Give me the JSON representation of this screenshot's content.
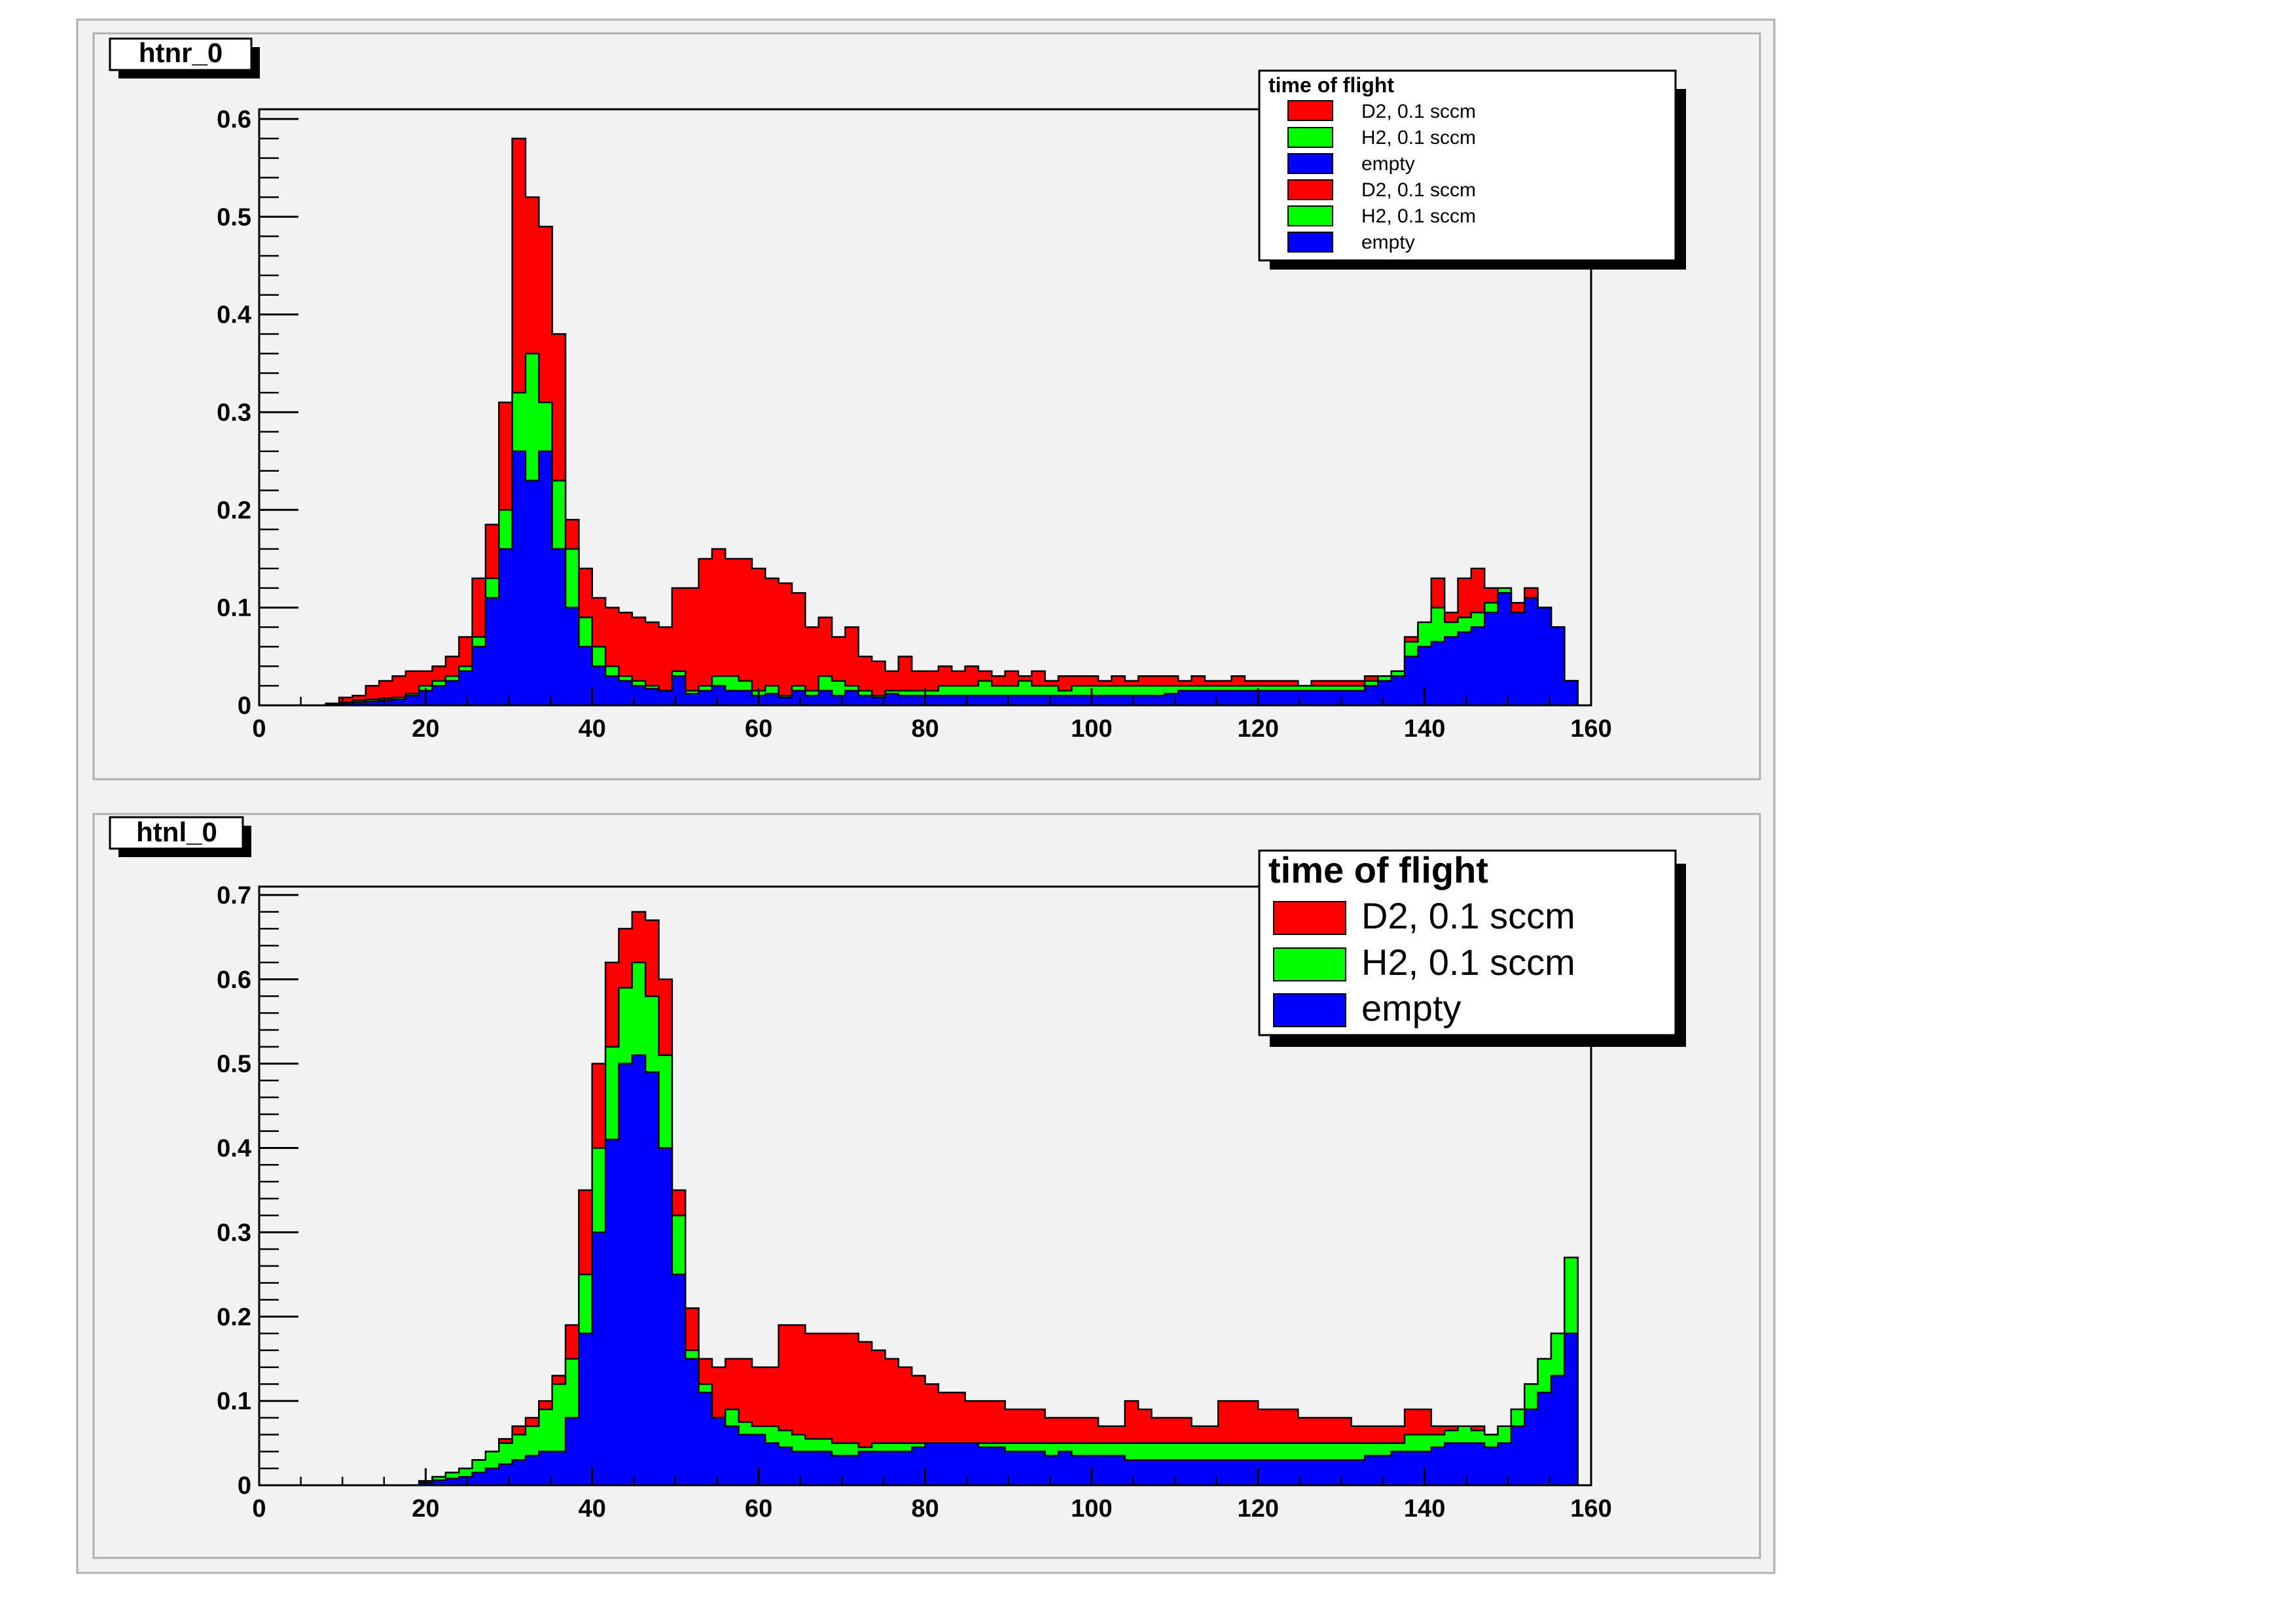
{
  "colors": {
    "background": "#ffffff",
    "pad": "#f2f2f2",
    "frame": "#000000",
    "d2": "#ff0000",
    "h2": "#00ff00",
    "empty": "#0000ff"
  },
  "chart_data": [
    {
      "type": "area",
      "subtype": "stacked-step-histogram",
      "title": "htnr_0",
      "xlim": [
        0,
        160
      ],
      "ylim": [
        0,
        0.61
      ],
      "xticks": [
        "0",
        "20",
        "40",
        "60",
        "80",
        "100",
        "120",
        "140",
        "160"
      ],
      "yticks": [
        "0",
        "0.1",
        "0.2",
        "0.3",
        "0.4",
        "0.5",
        "0.6"
      ],
      "legend": {
        "title": "time of flight",
        "placement": "top-right",
        "entries": [
          "D2, 0.1 sccm",
          "H2, 0.1 sccm",
          "empty",
          "D2, 0.1 sccm",
          "H2, 0.1 sccm",
          "empty"
        ]
      },
      "bin_width": 1.6,
      "series": [
        {
          "name": "empty",
          "color_key": "empty",
          "values": [
            0,
            0,
            0,
            0,
            0,
            0.001,
            0.002,
            0.003,
            0.004,
            0.005,
            0.006,
            0.01,
            0.015,
            0.02,
            0.025,
            0.035,
            0.06,
            0.11,
            0.16,
            0.26,
            0.23,
            0.26,
            0.16,
            0.1,
            0.06,
            0.04,
            0.03,
            0.025,
            0.02,
            0.017,
            0.015,
            0.03,
            0.012,
            0.015,
            0.02,
            0.015,
            0.015,
            0.01,
            0.012,
            0.008,
            0.015,
            0.01,
            0.015,
            0.01,
            0.015,
            0.01,
            0.008,
            0.012,
            0.01,
            0.01,
            0.01,
            0.01,
            0.01,
            0.01,
            0.01,
            0.01,
            0.01,
            0.01,
            0.01,
            0.01,
            0.01,
            0.01,
            0.01,
            0.01,
            0.01,
            0.01,
            0.01,
            0.01,
            0.012,
            0.015,
            0.015,
            0.015,
            0.015,
            0.015,
            0.015,
            0.015,
            0.015,
            0.015,
            0.015,
            0.015,
            0.015,
            0.015,
            0.015,
            0.02,
            0.025,
            0.03,
            0.05,
            0.06,
            0.065,
            0.07,
            0.075,
            0.08,
            0.095,
            0.115,
            0.095,
            0.11,
            0.1,
            0.08,
            0.025
          ]
        },
        {
          "name": "H2, 0.1 sccm",
          "color_key": "h2",
          "values": [
            0,
            0,
            0,
            0,
            0,
            0.001,
            0.003,
            0.005,
            0.006,
            0.007,
            0.008,
            0.012,
            0.02,
            0.025,
            0.03,
            0.04,
            0.07,
            0.13,
            0.2,
            0.32,
            0.36,
            0.31,
            0.23,
            0.16,
            0.09,
            0.06,
            0.04,
            0.03,
            0.025,
            0.02,
            0.015,
            0.035,
            0.015,
            0.02,
            0.03,
            0.03,
            0.025,
            0.015,
            0.02,
            0.01,
            0.02,
            0.015,
            0.03,
            0.025,
            0.02,
            0.015,
            0.01,
            0.015,
            0.015,
            0.015,
            0.015,
            0.02,
            0.02,
            0.02,
            0.025,
            0.02,
            0.02,
            0.025,
            0.02,
            0.02,
            0.015,
            0.02,
            0.02,
            0.02,
            0.02,
            0.02,
            0.02,
            0.02,
            0.02,
            0.02,
            0.02,
            0.02,
            0.02,
            0.02,
            0.02,
            0.02,
            0.02,
            0.02,
            0.02,
            0.02,
            0.02,
            0.02,
            0.02,
            0.025,
            0.03,
            0.035,
            0.065,
            0.085,
            0.1,
            0.085,
            0.09,
            0.095,
            0.105,
            0.12,
            0.095,
            0.11,
            0.1,
            0.08,
            0.025
          ]
        },
        {
          "name": "D2, 0.1 sccm",
          "color_key": "d2",
          "values": [
            0,
            0,
            0,
            0,
            0,
            0.002,
            0.008,
            0.01,
            0.02,
            0.025,
            0.03,
            0.035,
            0.035,
            0.04,
            0.05,
            0.07,
            0.13,
            0.185,
            0.31,
            0.58,
            0.52,
            0.49,
            0.38,
            0.19,
            0.14,
            0.11,
            0.1,
            0.095,
            0.09,
            0.085,
            0.08,
            0.12,
            0.12,
            0.15,
            0.16,
            0.15,
            0.15,
            0.14,
            0.13,
            0.125,
            0.115,
            0.08,
            0.09,
            0.07,
            0.08,
            0.05,
            0.045,
            0.035,
            0.05,
            0.035,
            0.035,
            0.04,
            0.035,
            0.04,
            0.035,
            0.03,
            0.035,
            0.03,
            0.035,
            0.025,
            0.03,
            0.03,
            0.03,
            0.025,
            0.03,
            0.025,
            0.03,
            0.03,
            0.03,
            0.025,
            0.03,
            0.025,
            0.025,
            0.03,
            0.025,
            0.025,
            0.025,
            0.025,
            0.02,
            0.025,
            0.025,
            0.025,
            0.025,
            0.03,
            0.03,
            0.035,
            0.07,
            0.08,
            0.13,
            0.095,
            0.13,
            0.14,
            0.12,
            0.12,
            0.105,
            0.12,
            0.1,
            0.08,
            0.025
          ]
        }
      ]
    },
    {
      "type": "area",
      "subtype": "stacked-step-histogram",
      "title": "htnl_0",
      "xlim": [
        0,
        160
      ],
      "ylim": [
        0,
        0.71
      ],
      "xticks": [
        "0",
        "20",
        "40",
        "60",
        "80",
        "100",
        "120",
        "140",
        "160"
      ],
      "yticks": [
        "0",
        "0.1",
        "0.2",
        "0.3",
        "0.4",
        "0.5",
        "0.6",
        "0.7"
      ],
      "legend": {
        "title": "time of flight",
        "placement": "top-right",
        "entries": [
          "D2, 0.1 sccm",
          "H2, 0.1 sccm",
          "empty"
        ]
      },
      "bin_width": 1.6,
      "series": [
        {
          "name": "empty",
          "color_key": "empty",
          "values": [
            0,
            0,
            0,
            0,
            0,
            0,
            0,
            0,
            0,
            0,
            0,
            0,
            0.003,
            0.006,
            0.008,
            0.01,
            0.015,
            0.02,
            0.025,
            0.03,
            0.035,
            0.04,
            0.04,
            0.08,
            0.18,
            0.3,
            0.41,
            0.5,
            0.51,
            0.49,
            0.4,
            0.25,
            0.15,
            0.11,
            0.08,
            0.07,
            0.06,
            0.06,
            0.05,
            0.045,
            0.04,
            0.04,
            0.04,
            0.035,
            0.035,
            0.04,
            0.04,
            0.04,
            0.04,
            0.045,
            0.05,
            0.05,
            0.05,
            0.05,
            0.045,
            0.045,
            0.04,
            0.04,
            0.04,
            0.035,
            0.04,
            0.035,
            0.035,
            0.035,
            0.035,
            0.03,
            0.03,
            0.03,
            0.03,
            0.03,
            0.03,
            0.03,
            0.03,
            0.03,
            0.03,
            0.03,
            0.03,
            0.03,
            0.03,
            0.03,
            0.03,
            0.03,
            0.03,
            0.035,
            0.035,
            0.04,
            0.04,
            0.04,
            0.045,
            0.05,
            0.05,
            0.05,
            0.045,
            0.05,
            0.07,
            0.09,
            0.11,
            0.13,
            0.18
          ]
        },
        {
          "name": "H2, 0.1 sccm",
          "color_key": "h2",
          "values": [
            0,
            0,
            0,
            0,
            0,
            0,
            0,
            0,
            0,
            0,
            0,
            0,
            0.005,
            0.01,
            0.015,
            0.02,
            0.03,
            0.04,
            0.05,
            0.06,
            0.07,
            0.09,
            0.12,
            0.15,
            0.25,
            0.4,
            0.52,
            0.59,
            0.62,
            0.58,
            0.51,
            0.32,
            0.16,
            0.12,
            0.08,
            0.09,
            0.075,
            0.07,
            0.07,
            0.065,
            0.06,
            0.055,
            0.055,
            0.05,
            0.05,
            0.045,
            0.05,
            0.05,
            0.05,
            0.05,
            0.05,
            0.05,
            0.05,
            0.05,
            0.05,
            0.05,
            0.05,
            0.05,
            0.05,
            0.05,
            0.05,
            0.05,
            0.05,
            0.05,
            0.05,
            0.05,
            0.05,
            0.05,
            0.05,
            0.05,
            0.05,
            0.05,
            0.05,
            0.05,
            0.05,
            0.05,
            0.05,
            0.05,
            0.05,
            0.05,
            0.05,
            0.05,
            0.05,
            0.05,
            0.05,
            0.05,
            0.06,
            0.06,
            0.06,
            0.065,
            0.07,
            0.065,
            0.06,
            0.07,
            0.09,
            0.12,
            0.15,
            0.18,
            0.27
          ]
        },
        {
          "name": "D2, 0.1 sccm",
          "color_key": "d2",
          "values": [
            0,
            0,
            0,
            0,
            0,
            0,
            0,
            0,
            0,
            0,
            0,
            0,
            0.005,
            0.01,
            0.015,
            0.02,
            0.03,
            0.04,
            0.055,
            0.07,
            0.08,
            0.1,
            0.13,
            0.19,
            0.35,
            0.5,
            0.62,
            0.66,
            0.68,
            0.67,
            0.6,
            0.35,
            0.21,
            0.15,
            0.14,
            0.15,
            0.15,
            0.14,
            0.14,
            0.19,
            0.19,
            0.18,
            0.18,
            0.18,
            0.18,
            0.17,
            0.16,
            0.15,
            0.14,
            0.13,
            0.12,
            0.11,
            0.11,
            0.1,
            0.1,
            0.1,
            0.09,
            0.09,
            0.09,
            0.08,
            0.08,
            0.08,
            0.08,
            0.07,
            0.07,
            0.1,
            0.09,
            0.08,
            0.08,
            0.08,
            0.07,
            0.07,
            0.1,
            0.1,
            0.1,
            0.09,
            0.09,
            0.09,
            0.08,
            0.08,
            0.08,
            0.08,
            0.07,
            0.07,
            0.07,
            0.07,
            0.09,
            0.09,
            0.07,
            0.07,
            0.07,
            0.07,
            0.06,
            0.07,
            0.09,
            0.12,
            0.15,
            0.18,
            0.27
          ]
        }
      ]
    }
  ]
}
